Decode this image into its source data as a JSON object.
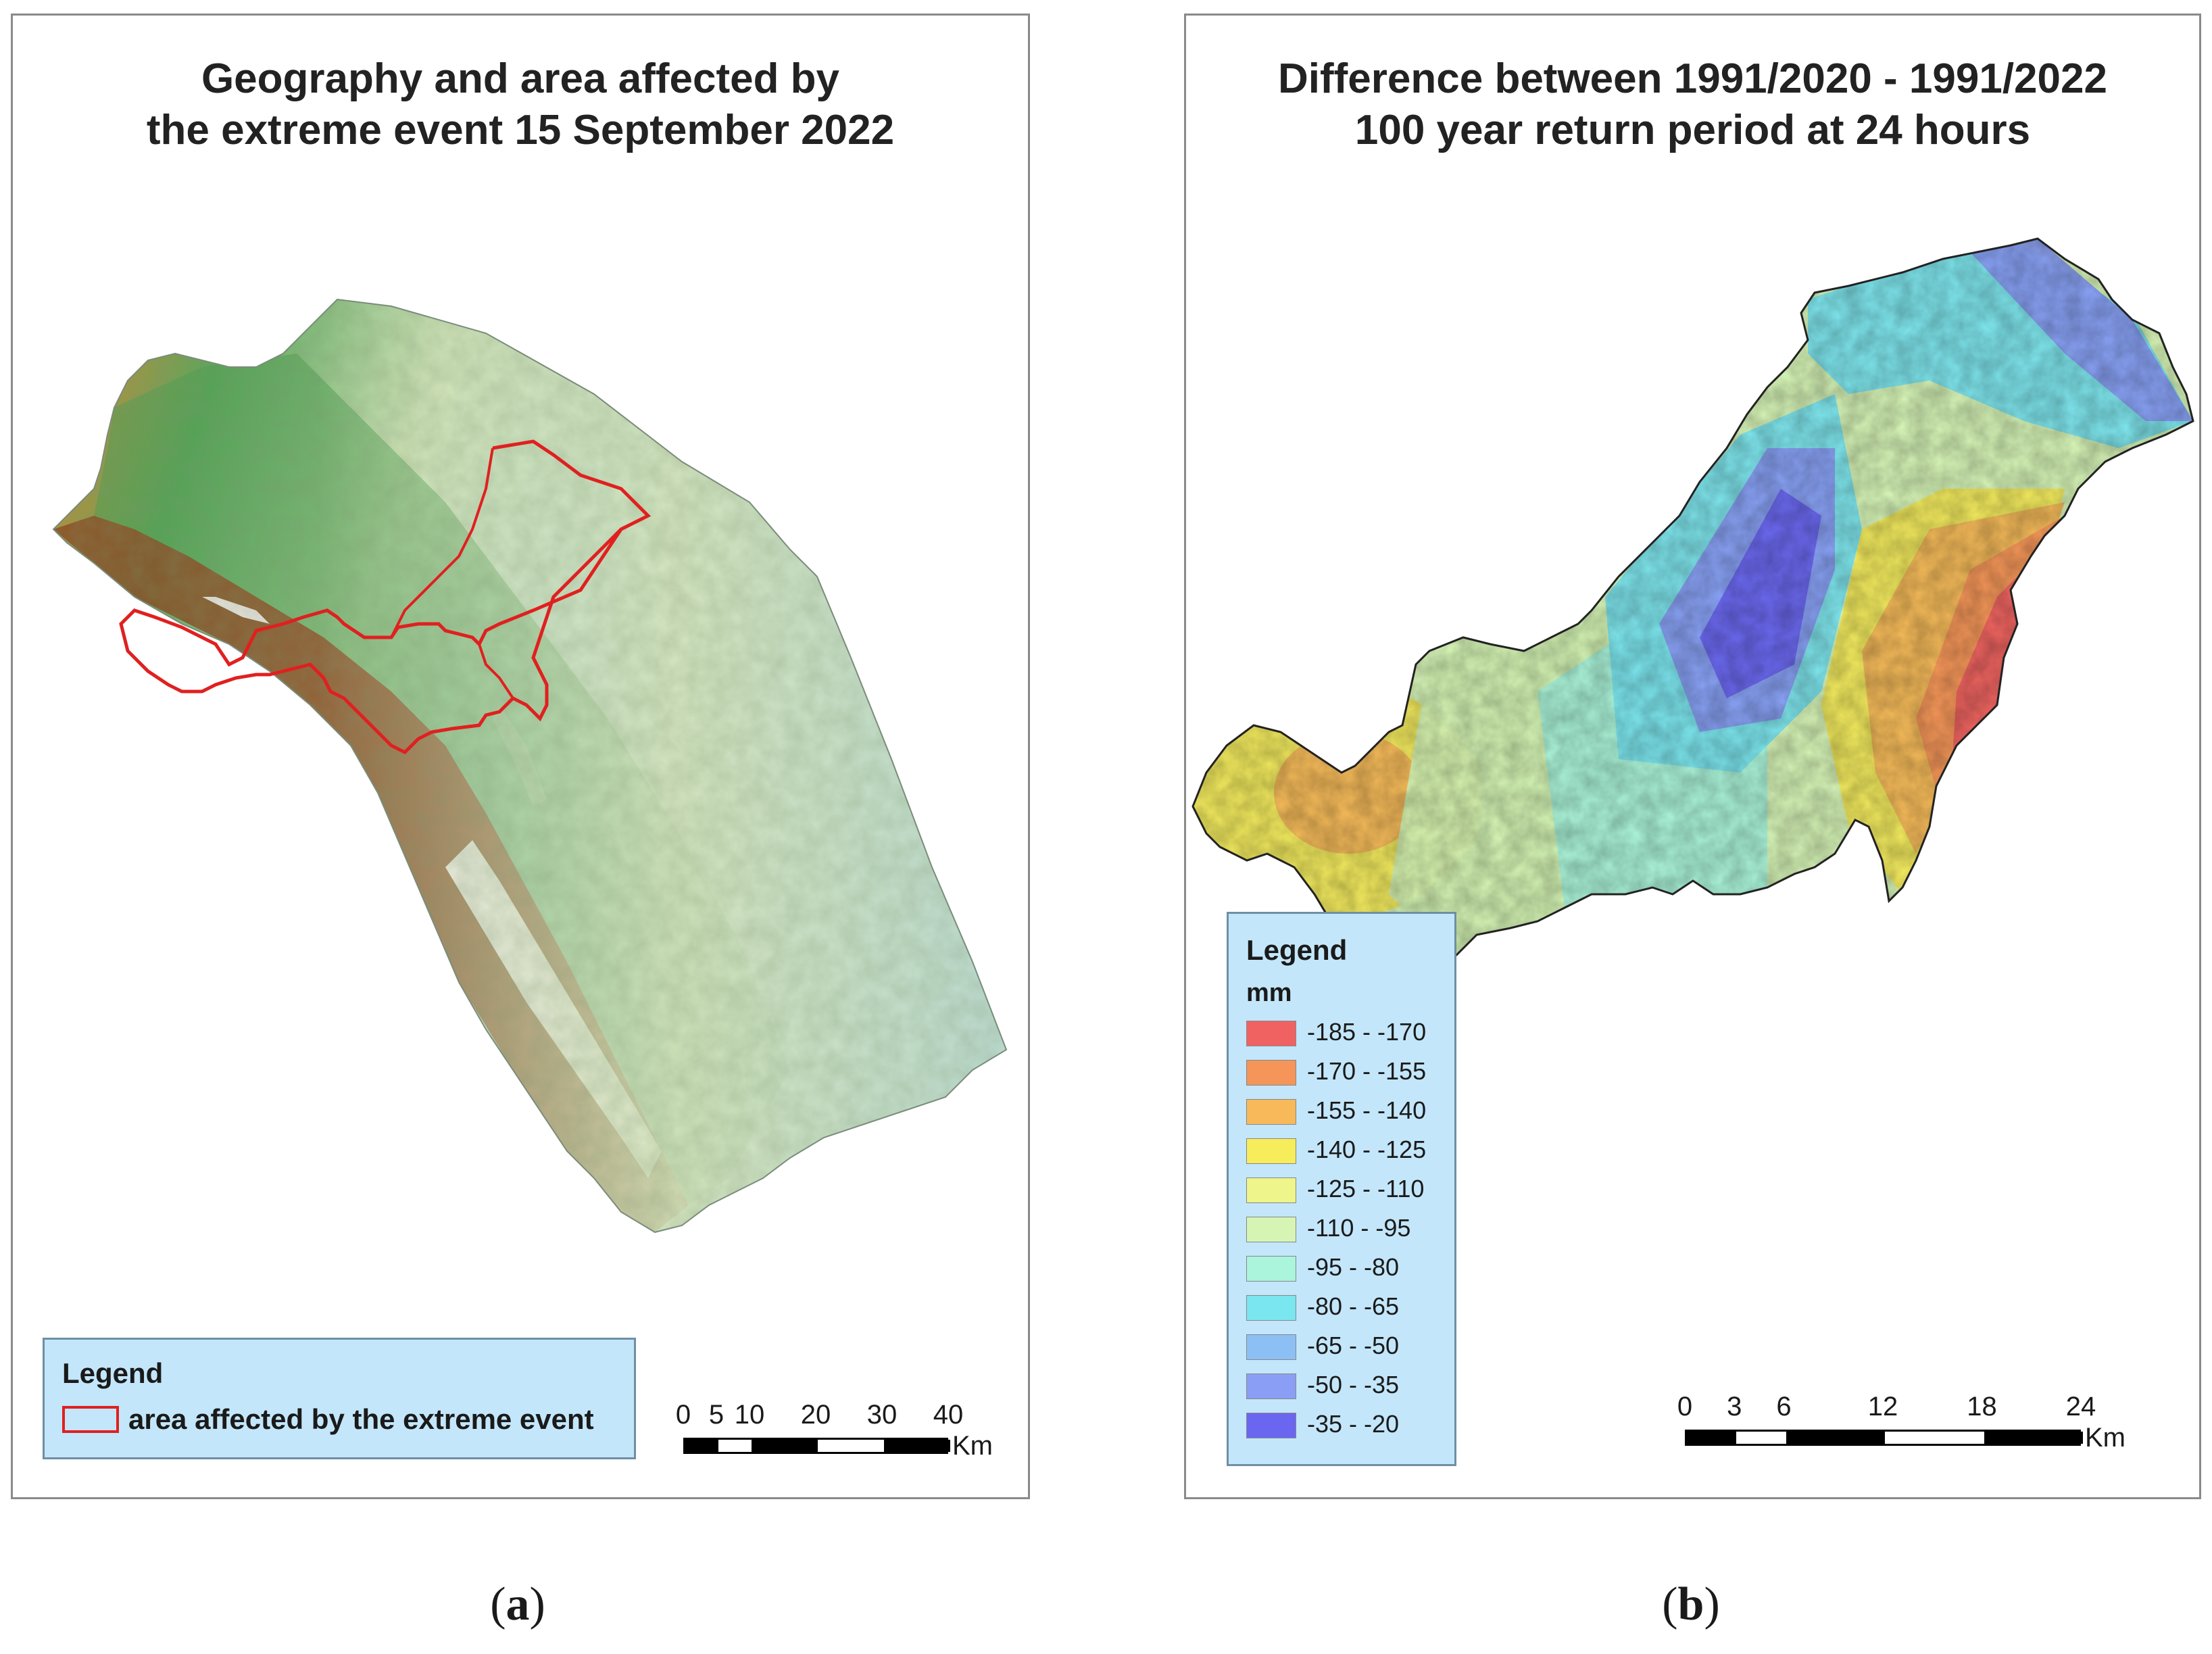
{
  "panel_a": {
    "title_line1": "Geography and area affected by",
    "title_line2": "the extreme event 15 September 2022",
    "legend": {
      "title": "Legend",
      "items": [
        {
          "label": "area affected by the extreme event",
          "color": "#e02020"
        }
      ]
    },
    "scale": {
      "ticks": [
        "0",
        "5",
        "10",
        "20",
        "30",
        "40"
      ],
      "tick_values": [
        0,
        5,
        10,
        20,
        30,
        40
      ],
      "unit": "Km"
    },
    "caption": "a",
    "relief_colors": [
      "#bcdcd0",
      "#cfe3b8",
      "#58a85a",
      "#c98a34",
      "#7a3a1c",
      "#f2f2f2"
    ]
  },
  "panel_b": {
    "title_line1": "Difference between 1991/2020 - 1991/2022",
    "title_line2": "100 year return period at 24 hours",
    "legend": {
      "title": "Legend",
      "unit": "mm",
      "classes": [
        {
          "label": "-185 - -170",
          "color": "#f06262"
        },
        {
          "label": "-170 - -155",
          "color": "#f5955a"
        },
        {
          "label": "-155 - -140",
          "color": "#f7b95a"
        },
        {
          "label": "-140 - -125",
          "color": "#f7ec5a"
        },
        {
          "label": "-125 - -110",
          "color": "#eef58a"
        },
        {
          "label": "-110 - -95",
          "color": "#d6f5b4"
        },
        {
          "label": "-95 - -80",
          "color": "#aaf5dc"
        },
        {
          "label": "-80 - -65",
          "color": "#7ae6f0"
        },
        {
          "label": "-65 - -50",
          "color": "#8cc0f5"
        },
        {
          "label": "-50 - -35",
          "color": "#8a9ef5"
        },
        {
          "label": "-35 - -20",
          "color": "#6a66f0"
        }
      ]
    },
    "scale": {
      "ticks": [
        "0",
        "3",
        "6",
        "12",
        "18",
        "24"
      ],
      "tick_values": [
        0,
        3,
        6,
        12,
        18,
        24
      ],
      "unit": "Km"
    },
    "caption": "b"
  }
}
